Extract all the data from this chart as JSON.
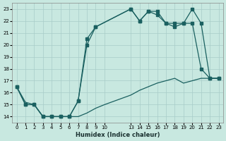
{
  "xlabel": "Humidex (Indice chaleur)",
  "bg_color": "#c8e8e0",
  "grid_color": "#a8ccc8",
  "line_color": "#1a6060",
  "xlim": [
    -0.5,
    23.5
  ],
  "ylim": [
    13.5,
    23.5
  ],
  "xticks": [
    0,
    1,
    2,
    3,
    4,
    5,
    6,
    7,
    8,
    9,
    10,
    13,
    14,
    15,
    16,
    17,
    18,
    19,
    20,
    21,
    22,
    23
  ],
  "yticks": [
    14,
    15,
    16,
    17,
    18,
    19,
    20,
    21,
    22,
    23
  ],
  "curve1_x": [
    0,
    1,
    2,
    3,
    4,
    5,
    6,
    7,
    8,
    9,
    13,
    14,
    15,
    16,
    17,
    18,
    19,
    20,
    21,
    22,
    23
  ],
  "curve1_y": [
    16.5,
    15.0,
    15.0,
    14.0,
    14.0,
    14.0,
    14.0,
    15.3,
    20.0,
    21.5,
    23.0,
    22.0,
    22.8,
    22.8,
    21.8,
    21.8,
    21.8,
    21.8,
    18.0,
    17.2,
    17.2
  ],
  "curve2_x": [
    0,
    1,
    2,
    3,
    4,
    5,
    6,
    7,
    8,
    9,
    13,
    14,
    15,
    16,
    17,
    18,
    19,
    20,
    21,
    22,
    23
  ],
  "curve2_y": [
    16.5,
    15.0,
    15.0,
    14.0,
    14.0,
    14.0,
    14.0,
    15.3,
    20.5,
    21.5,
    23.0,
    22.0,
    22.8,
    22.5,
    21.8,
    21.5,
    21.8,
    23.0,
    21.8,
    17.2,
    17.2
  ],
  "curve3_x": [
    0,
    1,
    2,
    3,
    4,
    5,
    6,
    7,
    8,
    9,
    10,
    13,
    14,
    15,
    16,
    17,
    18,
    19,
    20,
    21,
    22,
    23
  ],
  "curve3_y": [
    16.5,
    15.2,
    15.0,
    14.0,
    14.0,
    14.0,
    14.0,
    14.0,
    14.3,
    14.7,
    15.0,
    15.8,
    16.2,
    16.5,
    16.8,
    17.0,
    17.2,
    16.8,
    17.0,
    17.2,
    17.2,
    17.2
  ]
}
